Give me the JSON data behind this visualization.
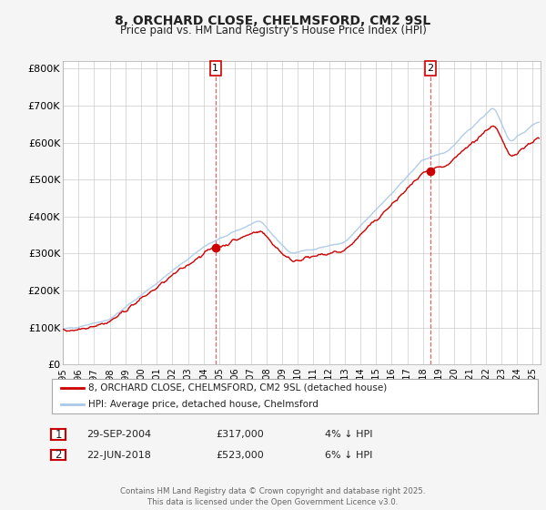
{
  "title": "8, ORCHARD CLOSE, CHELMSFORD, CM2 9SL",
  "subtitle": "Price paid vs. HM Land Registry's House Price Index (HPI)",
  "legend_label_red": "8, ORCHARD CLOSE, CHELMSFORD, CM2 9SL (detached house)",
  "legend_label_blue": "HPI: Average price, detached house, Chelmsford",
  "annotation1_date": "29-SEP-2004",
  "annotation1_price": "£317,000",
  "annotation1_hpi": "4% ↓ HPI",
  "annotation1_year": 2004.75,
  "annotation1_value": 317000,
  "annotation2_date": "22-JUN-2018",
  "annotation2_price": "£523,000",
  "annotation2_hpi": "6% ↓ HPI",
  "annotation2_year": 2018.47,
  "annotation2_value": 523000,
  "footer": "Contains HM Land Registry data © Crown copyright and database right 2025.\nThis data is licensed under the Open Government Licence v3.0.",
  "ylim": [
    0,
    820000
  ],
  "yticks": [
    0,
    100000,
    200000,
    300000,
    400000,
    500000,
    600000,
    700000,
    800000
  ],
  "ytick_labels": [
    "£0",
    "£100K",
    "£200K",
    "£300K",
    "£400K",
    "£500K",
    "£600K",
    "£700K",
    "£800K"
  ],
  "xmin": 1995,
  "xmax": 2025.5,
  "background_color": "#f5f5f5",
  "plot_bg_color": "#ffffff",
  "grid_color": "#cccccc",
  "red_color": "#cc0000",
  "blue_color": "#a8c8e8",
  "vline_color": "#cc0000",
  "marker_color": "#cc0000"
}
